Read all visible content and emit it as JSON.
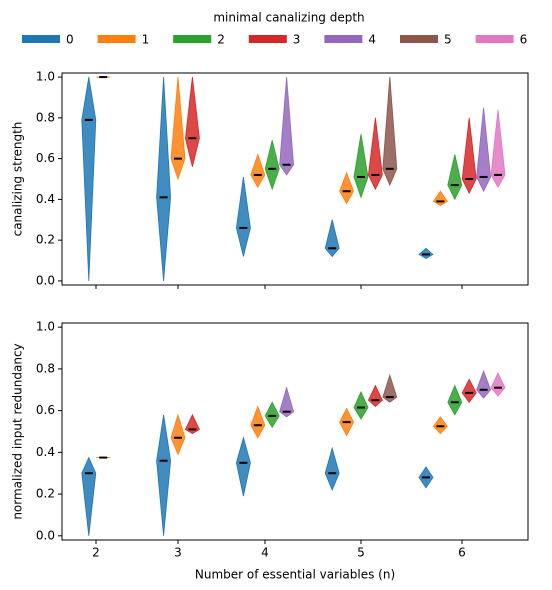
{
  "chart_data": [
    {
      "type": "violin",
      "legend_title": "minimal canalizing depth",
      "ylabel": "canalizing strength",
      "ylim": [
        -0.02,
        1.02
      ],
      "yticks": [
        {
          "value": 0,
          "label": "0.0"
        },
        {
          "value": 0.2,
          "label": "0.2"
        },
        {
          "value": 0.4,
          "label": "0.4"
        },
        {
          "value": 0.6,
          "label": "0.6"
        },
        {
          "value": 0.8,
          "label": "0.8"
        },
        {
          "value": 1,
          "label": "1.0"
        }
      ],
      "series": [
        {
          "name": "0",
          "color": "#1f77b4",
          "values": [
            0.79,
            0.41,
            0.26,
            0.16,
            0.13
          ],
          "min": [
            0,
            0,
            0.12,
            0.12,
            0.11
          ],
          "max": [
            1.0,
            1.0,
            0.51,
            0.3,
            0.16
          ]
        },
        {
          "name": "1",
          "color": "#ff7f0e",
          "values": [
            1.0,
            0.6,
            0.52,
            0.44,
            0.39
          ],
          "min": [
            1.0,
            0.5,
            0.46,
            0.38,
            0.37
          ],
          "max": [
            1.0,
            1.0,
            0.62,
            0.53,
            0.44
          ]
        },
        {
          "name": "2",
          "color": "#2ca02c",
          "values": [
            null,
            null,
            0.55,
            0.51,
            0.47
          ],
          "min": [
            null,
            null,
            0.45,
            0.41,
            0.4
          ],
          "max": [
            null,
            null,
            0.69,
            0.72,
            0.62
          ]
        },
        {
          "name": "3",
          "color": "#d62728",
          "values": [
            null,
            0.7,
            null,
            0.52,
            0.5
          ],
          "min": [
            null,
            0.56,
            null,
            0.45,
            0.43
          ],
          "max": [
            null,
            1.0,
            null,
            0.8,
            0.8
          ]
        },
        {
          "name": "4",
          "color": "#9467bd",
          "values": [
            null,
            null,
            0.57,
            null,
            0.51
          ],
          "min": [
            null,
            null,
            0.52,
            null,
            0.44
          ],
          "max": [
            null,
            null,
            1.0,
            null,
            0.85
          ]
        },
        {
          "name": "5",
          "color": "#8c564b",
          "values": [
            null,
            null,
            null,
            0.55,
            null
          ],
          "min": [
            null,
            null,
            null,
            0.47,
            null
          ],
          "max": [
            null,
            null,
            null,
            1.0,
            null
          ]
        },
        {
          "name": "6",
          "color": "#e377c2",
          "values": [
            null,
            null,
            null,
            null,
            0.52
          ],
          "min": [
            null,
            null,
            null,
            null,
            0.46
          ],
          "max": [
            null,
            null,
            null,
            null,
            0.84
          ]
        }
      ]
    },
    {
      "type": "violin",
      "ylabel": "normalized input redundancy",
      "xlabel": "Number of essential variables (n)",
      "categories": [
        "2",
        "3",
        "4",
        "5",
        "6"
      ],
      "ylim": [
        -0.02,
        1.02
      ],
      "yticks": [
        {
          "value": 0,
          "label": "0.0"
        },
        {
          "value": 0.2,
          "label": "0.2"
        },
        {
          "value": 0.4,
          "label": "0.4"
        },
        {
          "value": 0.6,
          "label": "0.6"
        },
        {
          "value": 0.8,
          "label": "0.8"
        },
        {
          "value": 1,
          "label": "1.0"
        }
      ],
      "series": [
        {
          "color": "#1f77b4",
          "values": [
            0.3,
            0.36,
            0.35,
            0.3,
            0.28
          ],
          "min": [
            0,
            0,
            0.19,
            0.22,
            0.23
          ],
          "max": [
            0.375,
            0.58,
            0.47,
            0.42,
            0.33
          ]
        },
        {
          "color": "#ff7f0e",
          "values": [
            0.375,
            0.47,
            0.53,
            0.545,
            0.525
          ],
          "min": [
            0.375,
            0.39,
            0.47,
            0.48,
            0.49
          ],
          "max": [
            0.375,
            0.58,
            0.62,
            0.61,
            0.57
          ]
        },
        {
          "color": "#2ca02c",
          "values": [
            null,
            null,
            0.575,
            0.615,
            0.64
          ],
          "min": [
            null,
            null,
            0.52,
            0.56,
            0.58
          ],
          "max": [
            null,
            null,
            0.64,
            0.69,
            0.72
          ]
        },
        {
          "color": "#d62728",
          "values": [
            null,
            0.51,
            null,
            0.65,
            0.685
          ],
          "min": [
            null,
            0.49,
            null,
            0.62,
            0.64
          ],
          "max": [
            null,
            0.58,
            null,
            0.72,
            0.75
          ]
        },
        {
          "color": "#9467bd",
          "values": [
            null,
            null,
            0.595,
            null,
            0.7
          ],
          "min": [
            null,
            null,
            0.57,
            null,
            0.66
          ],
          "max": [
            null,
            null,
            0.71,
            null,
            0.79
          ]
        },
        {
          "color": "#8c564b",
          "values": [
            null,
            null,
            null,
            0.665,
            null
          ],
          "min": [
            null,
            null,
            null,
            0.64,
            null
          ],
          "max": [
            null,
            null,
            null,
            0.77,
            null
          ]
        },
        {
          "color": "#e377c2",
          "values": [
            null,
            null,
            null,
            null,
            0.71
          ],
          "min": [
            null,
            null,
            null,
            null,
            0.67
          ],
          "max": [
            null,
            null,
            null,
            null,
            0.78
          ]
        }
      ]
    }
  ]
}
